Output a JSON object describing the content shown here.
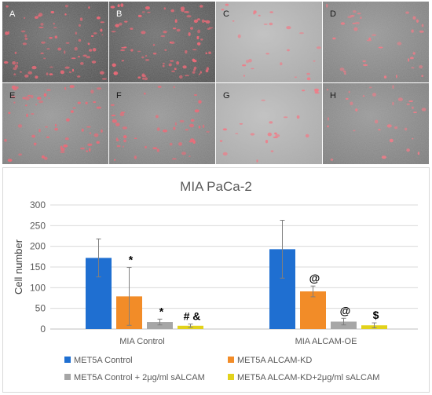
{
  "panels": [
    {
      "label": "A",
      "tone": "dark",
      "fluor": "#f06a78",
      "density": 70
    },
    {
      "label": "B",
      "tone": "dark",
      "fluor": "#f06a78",
      "density": 85
    },
    {
      "label": "C",
      "tone": "light",
      "fluor": "#f07c88",
      "density": 25
    },
    {
      "label": "D",
      "tone": "mid",
      "fluor": "#f07c88",
      "density": 35
    },
    {
      "label": "E",
      "tone": "mid",
      "fluor": "#f06a78",
      "density": 60
    },
    {
      "label": "F",
      "tone": "mid",
      "fluor": "#f06a78",
      "density": 45
    },
    {
      "label": "G",
      "tone": "light",
      "fluor": "#f07c88",
      "density": 22
    },
    {
      "label": "H",
      "tone": "mid",
      "fluor": "#f07c88",
      "density": 30
    }
  ],
  "chart_data": {
    "type": "bar",
    "title": "MIA PaCa-2",
    "ylabel": "Cell number",
    "xlabel": "",
    "ylim": [
      0,
      300
    ],
    "yticks": [
      0,
      50,
      100,
      150,
      200,
      250,
      300
    ],
    "grid": true,
    "legend_position": "bottom",
    "categories": [
      "MIA Control",
      "MIA ALCAM-OE"
    ],
    "series": [
      {
        "name": "MET5A Control",
        "color": "#1f6fd1",
        "values": [
          172,
          193
        ],
        "errors": [
          46,
          70
        ],
        "annotations": [
          "",
          ""
        ]
      },
      {
        "name": "MET5A ALCAM-KD",
        "color": "#f28c28",
        "values": [
          79,
          91
        ],
        "errors": [
          70,
          13
        ],
        "annotations": [
          "*",
          "@"
        ]
      },
      {
        "name": "MET5A Control + 2μg/ml sALCAM",
        "color": "#a6a6a6",
        "values": [
          17,
          18
        ],
        "errors": [
          7,
          8
        ],
        "annotations": [
          "*",
          "@"
        ]
      },
      {
        "name": "MET5A ALCAM-KD+2μg/ml sALCAM",
        "color": "#e2d21b",
        "values": [
          8,
          9
        ],
        "errors": [
          4,
          6
        ],
        "annotations": [
          "# &",
          "$"
        ]
      }
    ]
  }
}
